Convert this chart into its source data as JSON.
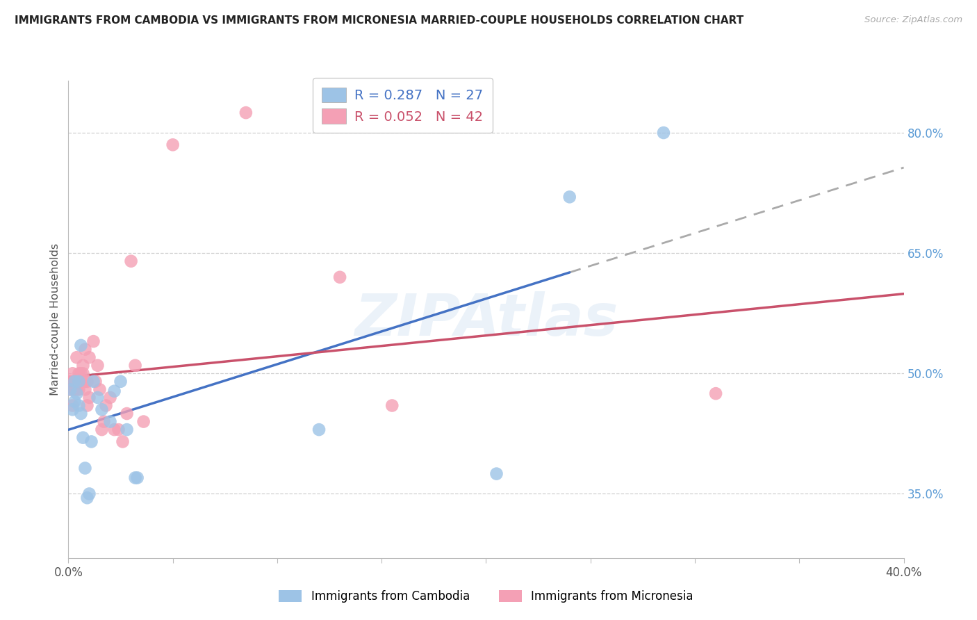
{
  "title": "IMMIGRANTS FROM CAMBODIA VS IMMIGRANTS FROM MICRONESIA MARRIED-COUPLE HOUSEHOLDS CORRELATION CHART",
  "source": "Source: ZipAtlas.com",
  "ylabel": "Married-couple Households",
  "watermark": "ZIPAtlas",
  "xlim": [
    0.0,
    0.4
  ],
  "ylim": [
    0.27,
    0.865
  ],
  "ytick_right_labels": [
    "80.0%",
    "65.0%",
    "50.0%",
    "35.0%"
  ],
  "ytick_right_values": [
    0.8,
    0.65,
    0.5,
    0.35
  ],
  "grid_color": "#d0d0d0",
  "cambodia_color": "#9dc3e6",
  "micronesia_color": "#f4a0b5",
  "cambodia_line_color": "#4472c4",
  "micronesia_line_color": "#c9516b",
  "R_cambodia": 0.287,
  "N_cambodia": 27,
  "R_micronesia": 0.052,
  "N_micronesia": 42,
  "cambodia_x": [
    0.001,
    0.002,
    0.003,
    0.003,
    0.004,
    0.005,
    0.005,
    0.006,
    0.006,
    0.007,
    0.008,
    0.009,
    0.01,
    0.011,
    0.012,
    0.014,
    0.016,
    0.02,
    0.022,
    0.025,
    0.028,
    0.032,
    0.033,
    0.12,
    0.205,
    0.24,
    0.285
  ],
  "cambodia_y": [
    0.48,
    0.455,
    0.465,
    0.49,
    0.475,
    0.46,
    0.49,
    0.535,
    0.45,
    0.42,
    0.382,
    0.345,
    0.35,
    0.415,
    0.49,
    0.47,
    0.455,
    0.44,
    0.478,
    0.49,
    0.43,
    0.37,
    0.37,
    0.43,
    0.375,
    0.72,
    0.8
  ],
  "micronesia_x": [
    0.001,
    0.001,
    0.002,
    0.002,
    0.003,
    0.003,
    0.004,
    0.004,
    0.005,
    0.005,
    0.005,
    0.006,
    0.006,
    0.007,
    0.007,
    0.008,
    0.008,
    0.008,
    0.009,
    0.009,
    0.01,
    0.01,
    0.012,
    0.013,
    0.014,
    0.015,
    0.016,
    0.017,
    0.018,
    0.02,
    0.022,
    0.024,
    0.026,
    0.028,
    0.03,
    0.032,
    0.036,
    0.05,
    0.085,
    0.13,
    0.155,
    0.31
  ],
  "micronesia_y": [
    0.48,
    0.49,
    0.5,
    0.46,
    0.49,
    0.48,
    0.52,
    0.48,
    0.5,
    0.49,
    0.48,
    0.5,
    0.49,
    0.5,
    0.51,
    0.49,
    0.48,
    0.53,
    0.46,
    0.49,
    0.52,
    0.47,
    0.54,
    0.49,
    0.51,
    0.48,
    0.43,
    0.44,
    0.46,
    0.47,
    0.43,
    0.43,
    0.415,
    0.45,
    0.64,
    0.51,
    0.44,
    0.785,
    0.825,
    0.62,
    0.46,
    0.475
  ],
  "background_color": "#ffffff",
  "camb_line_start_x": 0.0,
  "camb_line_end_solid_x": 0.24,
  "camb_line_end_dash_x": 0.4,
  "micro_line_start_x": 0.0,
  "micro_line_end_x": 0.4
}
